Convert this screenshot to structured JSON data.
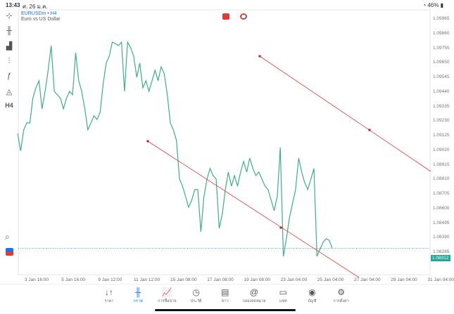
{
  "status": {
    "time": "13:43",
    "date": "ศ. 26 ม.ค.",
    "battery": "46%"
  },
  "chart": {
    "symbol": "EURUSDm • H4",
    "description": "Euro vs US Dollar",
    "current_price": "1.08312",
    "price_labels": [
      "1.09965",
      "1.09860",
      "1.09755",
      "1.09650",
      "1.09545",
      "1.09440",
      "1.09335",
      "1.09230",
      "1.09125",
      "1.09020",
      "1.08915",
      "1.08810",
      "1.08705",
      "1.08600",
      "1.08495",
      "1.08390",
      "1.08285"
    ],
    "time_labels": [
      "3 Jan 16:00",
      "5 Jan 16:00",
      "9 Jan 12:00",
      "11 Jan 12:00",
      "15 Jan 08:00",
      "17 Jan 08:00",
      "19 Jan 08:00",
      "23 Jan 04:00",
      "25 Jan 04:00",
      "27 Jan 04:00",
      "29 Jan 04:00",
      "31 Jan 04:00"
    ],
    "line_color": "#3fae86",
    "trendline_color": "#e53935",
    "series": [
      1.09141,
      1.09014,
      1.09166,
      1.09216,
      1.09216,
      1.09394,
      1.09469,
      1.0952,
      1.09318,
      1.09444,
      1.09596,
      1.09773,
      1.09444,
      1.09419,
      1.09394,
      1.09318,
      1.09394,
      1.09444,
      1.09419,
      1.09722,
      1.0952,
      1.09444,
      1.09318,
      1.09166,
      1.09216,
      1.09267,
      1.09242,
      1.09292,
      1.09495,
      1.09647,
      1.09697,
      1.09798,
      1.09788,
      1.09773,
      1.09798,
      1.09444,
      1.09798,
      1.09758,
      1.09697,
      1.09545,
      1.09647,
      1.09469,
      1.0952,
      1.09444,
      1.0952,
      1.09596,
      1.0952,
      1.09621,
      1.09571,
      1.09419,
      1.09216,
      1.09166,
      1.0909,
      1.08812,
      1.08761,
      1.08685,
      1.08609,
      1.0866,
      1.08736,
      1.08736,
      1.08432,
      1.08685,
      1.08812,
      1.08888,
      1.08837,
      1.08812,
      1.08457,
      1.08559,
      1.08736,
      1.08862,
      1.08761,
      1.08837,
      1.08761,
      1.08862,
      1.08938,
      1.08862,
      1.08963,
      1.08888,
      1.08837,
      1.08862,
      1.08812,
      1.08761,
      1.08736,
      1.0866,
      1.08584,
      1.08685,
      1.09039,
      1.08255,
      1.08382,
      1.08533,
      1.08635,
      1.08736,
      1.08963,
      1.08862,
      1.08786,
      1.08736,
      1.08812,
      1.08888,
      1.08255,
      1.08306,
      1.08356,
      1.08382,
      1.08371,
      1.08312
    ]
  },
  "left_toolbar": [
    {
      "icon": "crosshair-icon",
      "glyph": "⊹"
    },
    {
      "icon": "candlestick-icon",
      "glyph": "╫"
    },
    {
      "icon": "bar-chart-icon",
      "glyph": "▟"
    },
    {
      "icon": "indicators-icon",
      "glyph": "⫶"
    },
    {
      "icon": "function-icon",
      "glyph": "ƒ"
    },
    {
      "icon": "shapes-icon",
      "glyph": "◬"
    },
    {
      "icon": "timeframe",
      "glyph": "H4"
    }
  ],
  "nav": [
    {
      "label": "ราคา",
      "icon": "quotes-icon",
      "glyph": "↓↑"
    },
    {
      "label": "กราฟ",
      "icon": "chart-icon",
      "glyph": "╫"
    },
    {
      "label": "การซื้อขาย",
      "icon": "trade-icon",
      "glyph": "📈"
    },
    {
      "label": "ประวัติ",
      "icon": "history-icon",
      "glyph": "◷"
    },
    {
      "label": "ข่าว",
      "icon": "news-icon",
      "glyph": "▤"
    },
    {
      "label": "กล่องจดหมาย",
      "icon": "mailbox-icon",
      "glyph": "@"
    },
    {
      "label": "แชท",
      "icon": "chat-icon",
      "glyph": "▭"
    },
    {
      "label": "บัญชี",
      "icon": "account-icon",
      "glyph": "◉"
    },
    {
      "label": "การตั้งค่า",
      "icon": "settings-icon",
      "glyph": "⚙"
    }
  ]
}
